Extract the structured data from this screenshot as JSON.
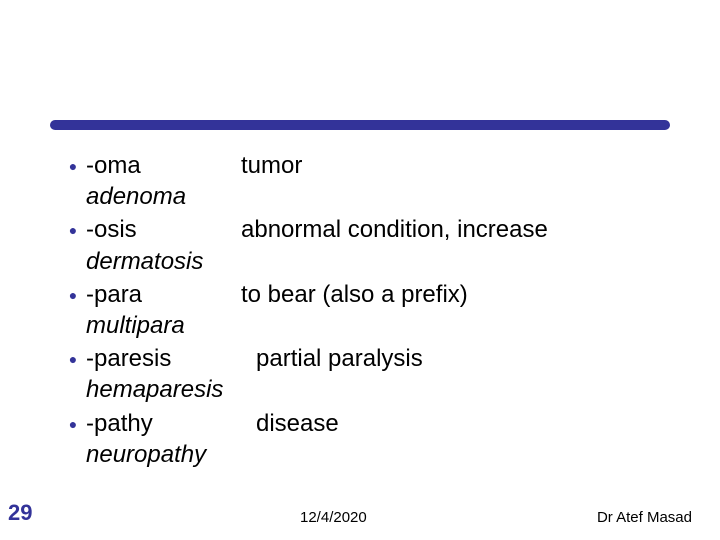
{
  "style": {
    "accent_color": "#333399",
    "text_color": "#000000",
    "background_color": "#ffffff",
    "body_fontsize": 24,
    "footer_fontsize": 15,
    "slidenum_fontsize": 22,
    "bullet_glyph": "●",
    "title_bar": {
      "color": "#333399",
      "height": 10,
      "radius": 5
    }
  },
  "items": [
    {
      "term": "-oma",
      "def": "tumor",
      "example": "adenoma",
      "term_wide": false
    },
    {
      "term": "-osis",
      "def": "abnormal condition, increase",
      "example": "dermatosis",
      "term_wide": false
    },
    {
      "term": "-para",
      "def": "to bear (also a prefix)",
      "example": "multipara",
      "term_wide": false
    },
    {
      "term": "-paresis",
      "def": "partial paralysis",
      "example": "hemaparesis",
      "term_wide": true
    },
    {
      "term": "-pathy",
      "def": "disease",
      "example": "neuropathy",
      "term_wide": true
    }
  ],
  "footer": {
    "slide_number": "29",
    "date": "12/4/2020",
    "author": "Dr Atef Masad"
  }
}
